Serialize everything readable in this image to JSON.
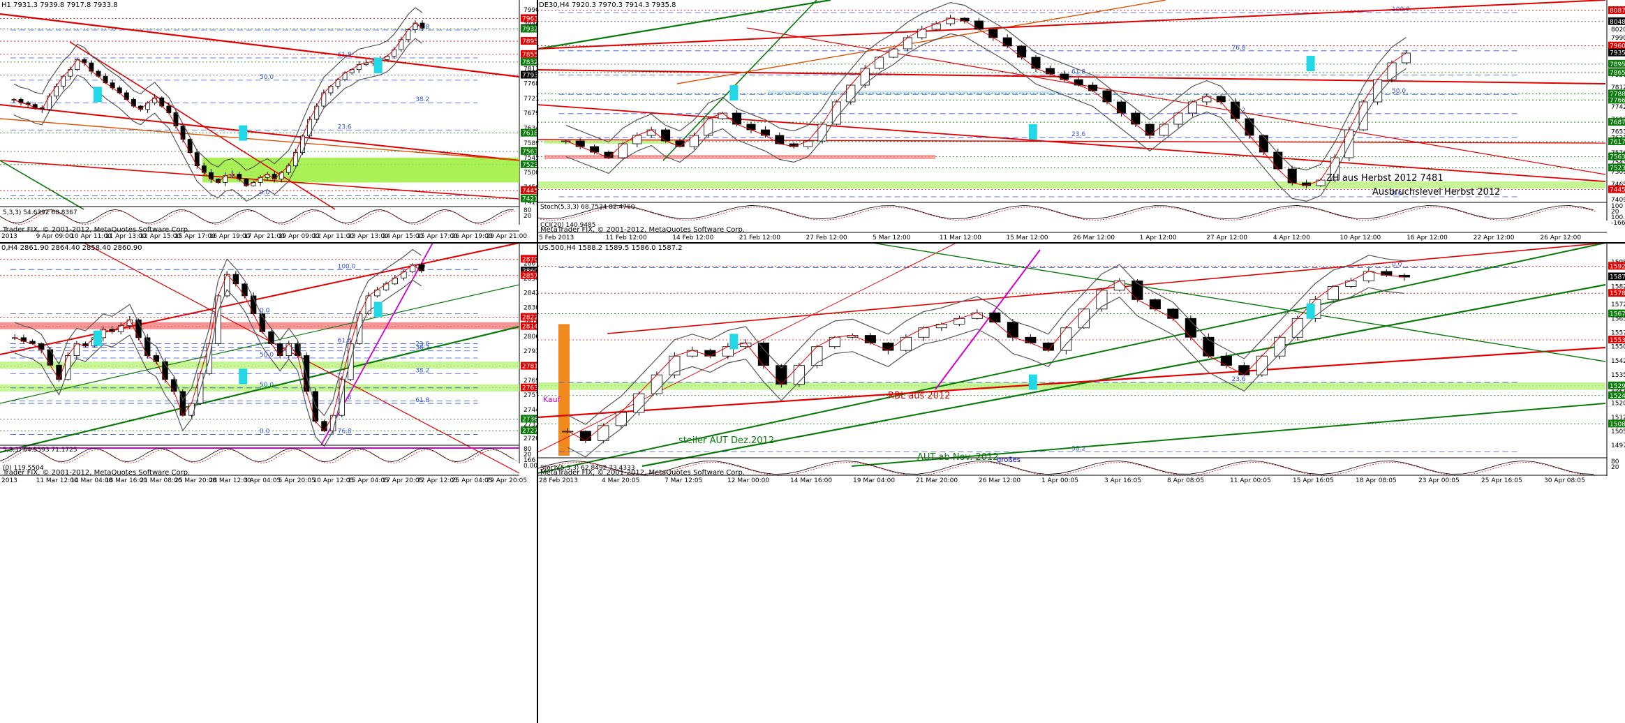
{
  "panes": [
    {
      "id": "p1",
      "header": "H1 7931.3 7939.8 7917.8 7933.8",
      "copyright": "Trader FIX, © 2001-2012, MetaQuotes Software Corp.",
      "osc_header": "5,3,3) 54.6392 68.8367",
      "price_range": [
        7410,
        7990
      ],
      "axis_labels": [
        "7990.0",
        "7946.0",
        "7901.0",
        "7857.0",
        "7812.0",
        "7768.0",
        "7723.0",
        "7679.0",
        "7634.0",
        "7589.0",
        "7545.0",
        "7500.0",
        "7456.0",
        "7411.0"
      ],
      "tags": [
        {
          "v": "7963.8",
          "c": "#e00000"
        },
        {
          "v": "7933.8",
          "c": "#000000"
        },
        {
          "v": "7932.1",
          "c": "#0a7a0a"
        },
        {
          "v": "7895.3",
          "c": "#e00000"
        },
        {
          "v": "7855.8",
          "c": "#e00000"
        },
        {
          "v": "7832.7",
          "c": "#0a7a0a"
        },
        {
          "v": "7793.5",
          "c": "#000000"
        },
        {
          "v": "7618.8",
          "c": "#0a7a0a"
        },
        {
          "v": "7563.7",
          "c": "#0a7a0a"
        },
        {
          "v": "7523.9",
          "c": "#0a7a0a"
        },
        {
          "v": "7445.9",
          "c": "#e00000"
        },
        {
          "v": "7421.1",
          "c": "#0a7a0a"
        }
      ],
      "fib": [
        {
          "t": "76.8",
          "v": 7929
        },
        {
          "t": "61.8",
          "v": 7845
        },
        {
          "t": "50.0",
          "v": 7778
        },
        {
          "t": "38.2",
          "v": 7710
        },
        {
          "t": "23.6",
          "v": 7628
        },
        {
          "t": "0.0",
          "v": 7430
        }
      ],
      "dates": [
        "2013",
        "9 Apr 09:00",
        "10 Apr 11:00",
        "11 Apr 13:00",
        "12 Apr 15:00",
        "15 Apr 17:00",
        "16 Apr 19:00",
        "17 Apr 21:00",
        "19 Apr 09:00",
        "22 Apr 11:00",
        "23 Apr 13:00",
        "24 Apr 15:00",
        "25 Apr 17:00",
        "26 Apr 19:00",
        "29 Apr 21:00"
      ],
      "osc_ticks": [
        "80",
        "20"
      ]
    },
    {
      "id": "p2",
      "header": "DE30,H4 7920.3 7970.3 7914.3 7935.8",
      "copyright": "MetaTrader FIX, © 2001-2012, MetaQuotes Software Corp.",
      "osc_header": "Stoch(5,3,3) 68.7534 82.4760",
      "cci_header": "CCI(20) 140.9485",
      "price_range": [
        7400,
        8100
      ],
      "axis_labels": [
        "8093.7",
        "8048.0",
        "8020.0",
        "7990.0",
        "7946.0",
        "7901.0",
        "7857.0",
        "7812.0",
        "7768.0",
        "7742.5",
        "7698.0",
        "7653.4",
        "7631.5",
        "7576.9",
        "7543.2",
        "7509.5",
        "7465.0",
        "7409.5"
      ],
      "tags": [
        {
          "v": "8087.3",
          "c": "#e00000"
        },
        {
          "v": "8048.0",
          "c": "#000000"
        },
        {
          "v": "7960.8",
          "c": "#e00000"
        },
        {
          "v": "7935.8",
          "c": "#000000"
        },
        {
          "v": "7895.3",
          "c": "#0a7a0a"
        },
        {
          "v": "7865.1",
          "c": "#0a7a0a"
        },
        {
          "v": "7788.9",
          "c": "#0a7a0a"
        },
        {
          "v": "7766.7",
          "c": "#0a7a0a"
        },
        {
          "v": "7687.3",
          "c": "#0a7a0a"
        },
        {
          "v": "7617.7",
          "c": "#0a7a0a"
        },
        {
          "v": "7563.7",
          "c": "#0a7a0a"
        },
        {
          "v": "7523.9",
          "c": "#0a7a0a"
        },
        {
          "v": "7445.9",
          "c": "#e00000"
        }
      ],
      "fib": [
        {
          "t": "100.0",
          "v": 8080
        },
        {
          "t": "76.8",
          "v": 7943
        },
        {
          "t": "61.8",
          "v": 7856
        },
        {
          "t": "50.0",
          "v": 7787
        },
        {
          "t": "38.2",
          "v": 7718
        },
        {
          "t": "23.6",
          "v": 7632
        },
        {
          "t": "0.0",
          "v": 7420
        }
      ],
      "annotations": [
        {
          "t": "ZH aus Herbst 2012 7481",
          "c": "#000000"
        },
        {
          "t": "Ausbruchslevel Herbst 2012",
          "c": "#000000"
        }
      ],
      "dates": [
        "5 Feb 2013",
        "11 Feb 12:00",
        "14 Feb 12:00",
        "21 Feb 12:00",
        "27 Feb 12:00",
        "5 Mar 12:00",
        "11 Mar 12:00",
        "15 Mar 12:00",
        "26 Mar 12:00",
        "1 Apr 12:00",
        "27 Apr 12:00",
        "4 Apr 12:00",
        "10 Apr 12:00",
        "16 Apr 12:00",
        "22 Apr 12:00",
        "26 Apr 12:00"
      ],
      "osc_ticks": [
        "100",
        "20",
        "100.0",
        "-166.6"
      ]
    },
    {
      "id": "p3",
      "header": "0,H4 2861.90 2864.40 2858.40 2860.90",
      "copyright": "Trader FIX, © 2001-2012, MetaQuotes Software Corp.",
      "osc_header": "5,3,3) 64.5593 71.1725",
      "cci_header": "(0) 119.5504",
      "price_range": [
        2715,
        2875
      ],
      "axis_labels": [
        "2867.00",
        "2854.45",
        "2842.55",
        "2830.30",
        "2818.05",
        "2806.15",
        "2793.90",
        "2781.65",
        "2769.40",
        "2757.15",
        "2744.90",
        "2732.65",
        "2720.75"
      ],
      "tags": [
        {
          "v": "2870.70",
          "c": "#e00000"
        },
        {
          "v": "2860.90",
          "c": "#000000"
        },
        {
          "v": "2857.00",
          "c": "#e00000"
        },
        {
          "v": "2822.10",
          "c": "#e00000"
        },
        {
          "v": "2814.50",
          "c": "#e00000"
        },
        {
          "v": "2781.20",
          "c": "#e00000"
        },
        {
          "v": "2763.10",
          "c": "#e00000"
        },
        {
          "v": "2736.90",
          "c": "#0a7a0a"
        },
        {
          "v": "2727.20",
          "c": "#0a7a0a"
        }
      ],
      "fib": [
        {
          "t": "0.0",
          "v": 2862
        },
        {
          "t": "100.0",
          "v": 2862
        },
        {
          "t": "0.0",
          "v": 2825
        },
        {
          "t": "23.6",
          "v": 2797
        },
        {
          "t": "61.8",
          "v": 2800
        },
        {
          "t": "50.0",
          "v": 2788
        },
        {
          "t": "38.2",
          "v": 2775
        },
        {
          "t": "23.6",
          "v": 2752
        },
        {
          "t": "50.0",
          "v": 2763
        },
        {
          "t": "61.8",
          "v": 2750
        },
        {
          "t": "76.8",
          "v": 2724
        },
        {
          "t": "0.0",
          "v": 2724
        },
        {
          "t": "38.2",
          "v": 2794
        }
      ],
      "dates": [
        "2013",
        "11 Mar 12:00",
        "14 Mar 04:00",
        "18 Mar 16:00",
        "21 Mar 08:00",
        "25 Mar 20:00",
        "28 Mar 12:00",
        "3 Apr 04:05",
        "5 Apr 20:05",
        "10 Apr 12:05",
        "15 Apr 04:05",
        "17 Apr 20:05",
        "22 Apr 12:05",
        "25 Apr 04:05",
        "29 Apr 20:05"
      ],
      "osc_ticks": [
        "80",
        "20",
        "166",
        "0.00"
      ]
    },
    {
      "id": "p4",
      "header": "US.500,H4 1588.2 1589.5 1586.0 1587.2",
      "copyright": "MetaTrader FIX, © 2001-2012, MetaQuotes Software Corp.",
      "osc_header": "Stoch(5,3,3) 62.8492 73.4333",
      "price_range": [
        1492,
        1600
      ],
      "axis_labels": [
        "1595.0",
        "1587.2",
        "1582.0",
        "1572.5",
        "1565.0",
        "1557.5",
        "1550.0",
        "1542.5",
        "1535.0",
        "1527.5",
        "1520.0",
        "1512.5",
        "1505.0",
        "1497.5"
      ],
      "tags": [
        {
          "v": "1592.8",
          "c": "#e00000"
        },
        {
          "v": "1587.2",
          "c": "#000000"
        },
        {
          "v": "1578.4",
          "c": "#e00000"
        },
        {
          "v": "1567.5",
          "c": "#0a7a0a"
        },
        {
          "v": "1553.6",
          "c": "#e00000"
        },
        {
          "v": "1529.2",
          "c": "#0a7a0a"
        },
        {
          "v": "1524.0",
          "c": "#0a7a0a"
        },
        {
          "v": "1508.9",
          "c": "#0a7a0a"
        }
      ],
      "fib": [
        {
          "t": "0.0",
          "v": 1592
        },
        {
          "t": "23.6",
          "v": 1531
        },
        {
          "t": "38.2",
          "v": 1494
        }
      ],
      "annotations": [
        {
          "t": "Kauf",
          "c": "#d000d0"
        },
        {
          "t": "RBL aus 2012",
          "c": "#e00000"
        },
        {
          "t": "steiler AUT Dez.2012",
          "c": "#0a7a0a"
        },
        {
          "t": "AUT ab Nov. 2012",
          "c": "#0a7a0a"
        },
        {
          "t": "großes",
          "c": "#0000cc"
        }
      ],
      "dates": [
        "28 Feb 2013",
        "4 Mar 20:05",
        "7 Mar 12:05",
        "12 Mar 00:00",
        "14 Mar 16:00",
        "19 Mar 04:00",
        "21 Mar 20:00",
        "26 Mar 12:00",
        "1 Apr 00:05",
        "3 Apr 16:05",
        "8 Apr 08:05",
        "11 Apr 00:05",
        "15 Apr 16:05",
        "18 Apr 08:05",
        "23 Apr 00:05",
        "25 Apr 16:05",
        "30 Apr 08:05"
      ],
      "osc_ticks": [
        "80",
        "20"
      ]
    }
  ],
  "chart_data": [
    {
      "type": "candlestick",
      "title": "",
      "price_range": [
        7410,
        7990
      ],
      "last": 7933.8,
      "levels": [
        7963.8,
        7932.1,
        7895.3,
        7855.8,
        7832.7,
        7793.5,
        7618.8,
        7563.7,
        7523.9,
        7445.9,
        7421.1
      ],
      "close_path": [
        7720,
        7710,
        7705,
        7695,
        7690,
        7730,
        7760,
        7790,
        7810,
        7840,
        7830,
        7805,
        7790,
        7770,
        7755,
        7740,
        7720,
        7700,
        7690,
        7710,
        7725,
        7700,
        7680,
        7640,
        7600,
        7560,
        7520,
        7500,
        7480,
        7470,
        7490,
        7495,
        7480,
        7460,
        7470,
        7485,
        7495,
        7480,
        7500,
        7520,
        7560,
        7610,
        7660,
        7700,
        7740,
        7760,
        7780,
        7800,
        7810,
        7825,
        7830,
        7835,
        7840,
        7850,
        7870,
        7900,
        7930,
        7950,
        7935
      ]
    },
    {
      "type": "candlestick",
      "title": "",
      "price_range": [
        7400,
        8100
      ],
      "last": 7935.8,
      "levels": [
        8087.3,
        8048.0,
        7960.8,
        7895.3,
        7865.1,
        7788.9,
        7766.7,
        7687.3,
        7617.7,
        7563.7,
        7523.9,
        7445.9
      ],
      "close_path": [
        7620,
        7600,
        7580,
        7560,
        7610,
        7640,
        7660,
        7620,
        7600,
        7640,
        7700,
        7720,
        7680,
        7660,
        7640,
        7610,
        7600,
        7620,
        7680,
        7760,
        7820,
        7880,
        7920,
        7950,
        7990,
        8020,
        8040,
        8060,
        8050,
        8020,
        7990,
        7960,
        7920,
        7880,
        7860,
        7840,
        7820,
        7800,
        7760,
        7720,
        7680,
        7640,
        7680,
        7720,
        7760,
        7780,
        7760,
        7700,
        7640,
        7580,
        7520,
        7470,
        7460,
        7480,
        7560,
        7660,
        7760,
        7840,
        7900,
        7935
      ]
    },
    {
      "type": "candlestick",
      "title": "",
      "price_range": [
        2715,
        2875
      ],
      "last": 2860.9,
      "levels": [
        2870.7,
        2857.0,
        2822.1,
        2814.5,
        2781.2,
        2763.1,
        2736.9,
        2727.2
      ],
      "close_path": [
        2805,
        2802,
        2800,
        2795,
        2782,
        2770,
        2790,
        2800,
        2798,
        2805,
        2812,
        2810,
        2815,
        2820,
        2805,
        2790,
        2785,
        2770,
        2760,
        2740,
        2750,
        2775,
        2800,
        2840,
        2858,
        2850,
        2840,
        2825,
        2810,
        2800,
        2790,
        2800,
        2790,
        2760,
        2735,
        2727,
        2740,
        2770,
        2800,
        2825,
        2840,
        2845,
        2850,
        2855,
        2860,
        2866,
        2861
      ]
    },
    {
      "type": "candlestick",
      "title": "",
      "price_range": [
        1492,
        1600
      ],
      "last": 1587.2,
      "levels": [
        1592.8,
        1578.4,
        1567.5,
        1553.6,
        1529.2,
        1524.0,
        1508.9
      ],
      "close_path": [
        1505,
        1500,
        1508,
        1515,
        1525,
        1535,
        1545,
        1548,
        1545,
        1550,
        1552,
        1540,
        1530,
        1540,
        1550,
        1555,
        1556,
        1552,
        1548,
        1555,
        1560,
        1562,
        1565,
        1568,
        1563,
        1555,
        1552,
        1548,
        1560,
        1570,
        1580,
        1585,
        1575,
        1570,
        1565,
        1555,
        1545,
        1540,
        1535,
        1545,
        1555,
        1565,
        1575,
        1582,
        1585,
        1590,
        1588,
        1587
      ]
    }
  ]
}
